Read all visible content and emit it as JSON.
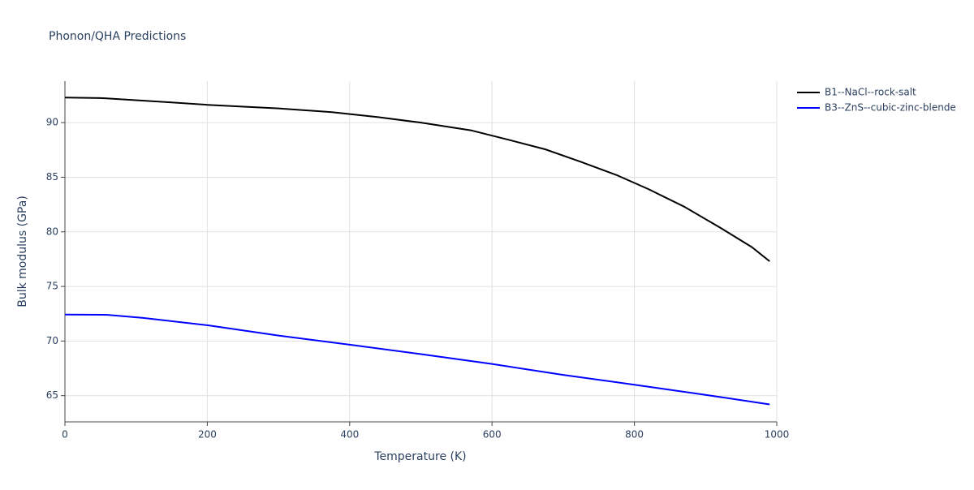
{
  "chart_data": {
    "type": "line",
    "title": "Phonon/QHA Predictions",
    "x_label": "Temperature (K)",
    "y_label": "Bulk modulus (GPa)",
    "xlim": [
      0,
      1000
    ],
    "xticks": [
      0,
      200,
      400,
      600,
      800,
      1000
    ],
    "ylim": [
      62.6,
      93.8
    ],
    "yticks": [
      65,
      70,
      75,
      80,
      85,
      90
    ],
    "grid": true,
    "legend": "right",
    "series": [
      {
        "name": "B1--NaCl--rock-salt",
        "color": "#000000",
        "x": [
          0,
          50,
          150,
          200,
          300,
          375,
          440,
          500,
          570,
          625,
          675,
          725,
          775,
          820,
          870,
          920,
          965,
          990
        ],
        "values": [
          92.3,
          92.25,
          91.85,
          91.63,
          91.3,
          90.96,
          90.5,
          90.0,
          89.3,
          88.4,
          87.55,
          86.4,
          85.2,
          83.9,
          82.3,
          80.4,
          78.6,
          77.3
        ]
      },
      {
        "name": "B3--ZnS--cubic-zinc-blende",
        "color": "#0000ff",
        "x": [
          0,
          60,
          110,
          200,
          300,
          400,
          500,
          600,
          700,
          800,
          900,
          990
        ],
        "values": [
          72.42,
          72.4,
          72.12,
          71.45,
          70.5,
          69.67,
          68.8,
          67.9,
          66.9,
          66.0,
          65.07,
          64.2
        ]
      }
    ]
  }
}
